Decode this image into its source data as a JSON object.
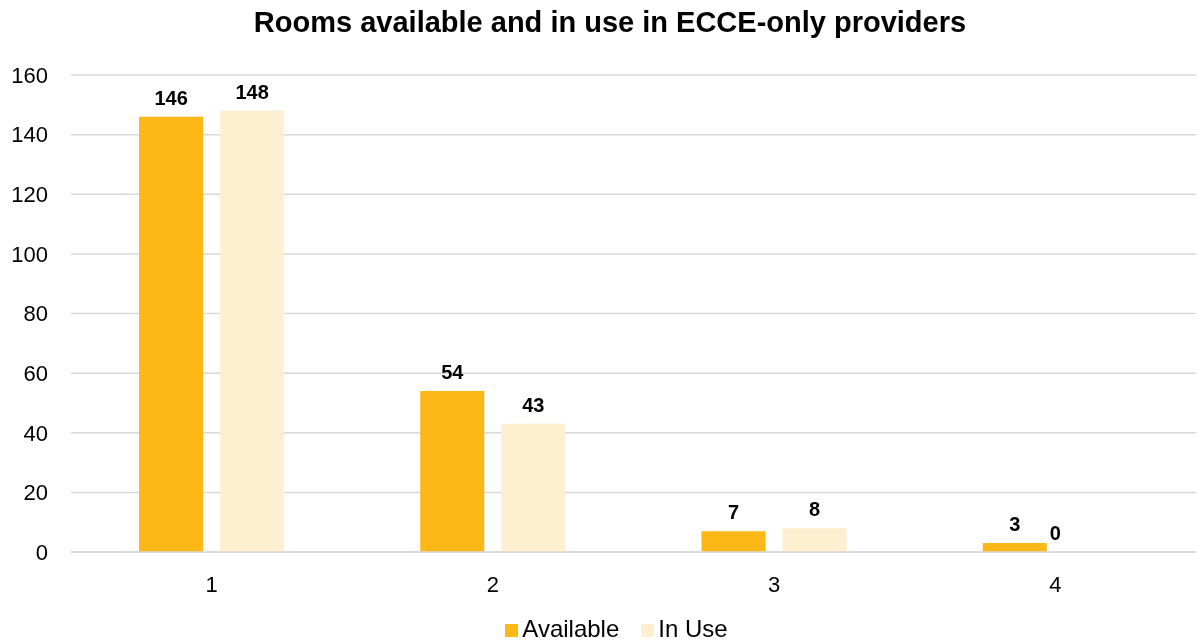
{
  "chart_data": {
    "type": "bar",
    "title": "Rooms available and in use in ECCE-only providers",
    "categories": [
      "1",
      "2",
      "3",
      "4"
    ],
    "series": [
      {
        "name": "Available",
        "color": "#fbb817",
        "values": [
          146,
          54,
          7,
          3
        ]
      },
      {
        "name": "In Use",
        "color": "#fdefd0",
        "values": [
          148,
          43,
          8,
          0
        ]
      }
    ],
    "ylim": [
      0,
      160
    ],
    "yticks": [
      0,
      20,
      40,
      60,
      80,
      100,
      120,
      140,
      160
    ],
    "grid": "y",
    "legend": "bottom",
    "data_labels": true
  }
}
